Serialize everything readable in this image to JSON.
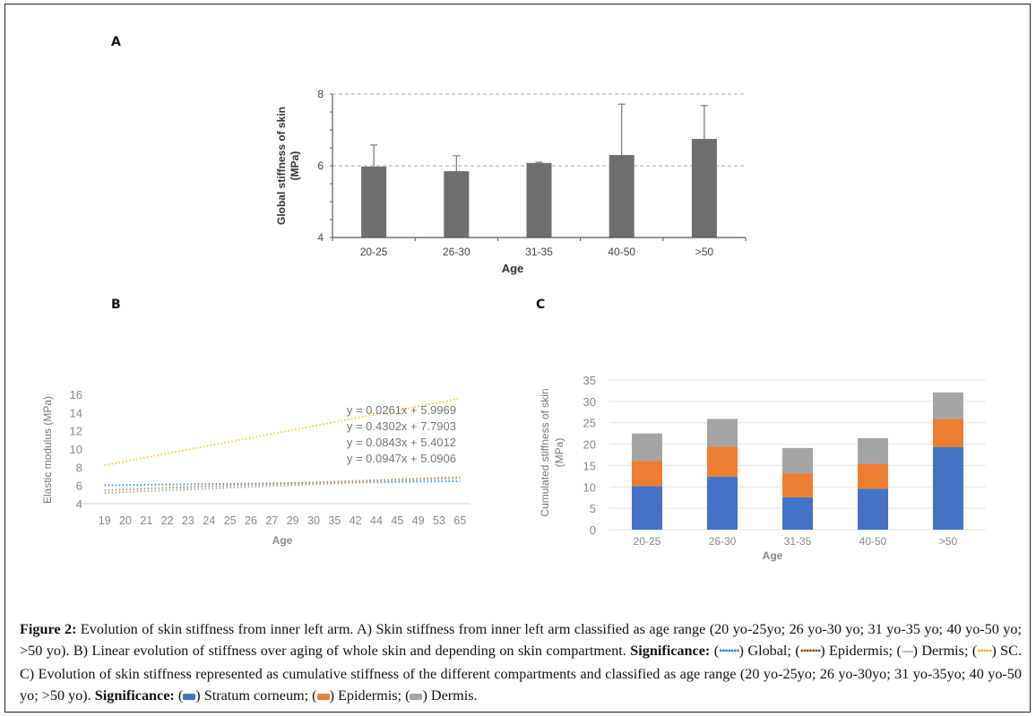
{
  "figure": {
    "panel_labels": [
      "A",
      "B",
      "C"
    ],
    "caption": {
      "fig_label": "Figure 2:",
      "text1": " Evolution of skin stiffness from inner left arm. A) Skin stiffness from inner left arm classified as age range (20 yo-25yo; 26 yo-30 yo; 31 yo-35 yo; 40 yo-50 yo; >50 yo). B) Linear evolution of stiffness over aging of whole skin and depending on skin compartment. ",
      "significance": "Significance:",
      "b_legend": [
        {
          "label": "Global;",
          "color": "#1f7fd6"
        },
        {
          "label": "Epidermis;",
          "color": "#8b4513"
        },
        {
          "label": "Dermis;",
          "color": "#b0b0b0"
        },
        {
          "label": "SC.",
          "color": "#f0b400"
        }
      ],
      "text2": " C) Evolution of skin stiffness represented as cumulative stiffness of the different compartments and classified as age range (20 yo-25yo; 26 yo-30yo; 31 yo-35yo; 40 yo-50 yo; >50 yo). ",
      "c_legend": [
        {
          "label": "Stratum corneum;",
          "color": "#4472c4"
        },
        {
          "label": "Epidermis;",
          "color": "#ed7d31"
        },
        {
          "label": "Dermis.",
          "color": "#a5a5a5"
        }
      ]
    }
  },
  "chart_data": [
    {
      "id": "A",
      "type": "bar",
      "title": "",
      "xlabel": "Age",
      "ylabel": "Global stiffness of skin (MPa)",
      "ylabel_lines": [
        "Global stiffness of skin",
        "(MPa)"
      ],
      "categories": [
        "20-25",
        "26-30",
        "31-35",
        "40-50",
        ">50"
      ],
      "values": [
        5.98,
        5.85,
        6.08,
        6.3,
        6.75
      ],
      "error_upper": [
        6.58,
        6.28,
        6.1,
        7.72,
        7.68
      ],
      "ylim": [
        4,
        8
      ],
      "yticks": [
        4,
        6,
        8
      ],
      "grid": "dashed at 6 and 8",
      "bar_color": "#6e6e6e"
    },
    {
      "id": "B",
      "type": "line",
      "title": "",
      "xlabel": "Age",
      "ylabel": "Elastic modulus (MPa)",
      "x": [
        "19",
        "20",
        "21",
        "22",
        "23",
        "24",
        "25",
        "26",
        "27",
        "29",
        "30",
        "35",
        "42",
        "44",
        "45",
        "49",
        "53",
        "65"
      ],
      "ylim": [
        4,
        16
      ],
      "yticks": [
        4,
        6,
        8,
        10,
        12,
        14,
        16
      ],
      "series": [
        {
          "name": "Global",
          "color": "#1f7fd6",
          "equation": "y = 0.0261x + 5.9969",
          "slope": 0.0261,
          "intercept": 5.9969
        },
        {
          "name": "SC",
          "color": "#f0c419",
          "equation": "y = 0.4302x + 7.7903",
          "slope": 0.4302,
          "intercept": 7.7903
        },
        {
          "name": "Epidermis",
          "color": "#c07a3a",
          "equation": "y = 0.0843x + 5.4012",
          "slope": 0.0843,
          "intercept": 5.4012
        },
        {
          "name": "Dermis",
          "color": "#a0a0a0",
          "equation": "y = 0.0947x + 5.0906",
          "slope": 0.0947,
          "intercept": 5.0906
        }
      ],
      "note": "Trendlines over category index (1..18)"
    },
    {
      "id": "C",
      "type": "bar",
      "stacked": true,
      "title": "",
      "xlabel": "Age",
      "ylabel": "Cumulated stiffness of skin (MPa)",
      "ylabel_lines": [
        "Cumulated stiffness of skin",
        "(MPa)"
      ],
      "categories": [
        "20-25",
        "26-30",
        "31-35",
        "40-50",
        ">50"
      ],
      "ylim": [
        0,
        35
      ],
      "yticks": [
        0,
        5,
        10,
        15,
        20,
        25,
        30,
        35
      ],
      "grid": "horizontal",
      "series": [
        {
          "name": "Stratum corneum",
          "color": "#4472c4",
          "values": [
            10.2,
            12.4,
            7.6,
            9.6,
            19.3
          ]
        },
        {
          "name": "Epidermis",
          "color": "#ed7d31",
          "values": [
            5.9,
            7.0,
            5.5,
            5.7,
            6.6
          ]
        },
        {
          "name": "Dermis",
          "color": "#a5a5a5",
          "values": [
            6.4,
            6.5,
            6.0,
            6.1,
            6.2
          ]
        }
      ]
    }
  ]
}
